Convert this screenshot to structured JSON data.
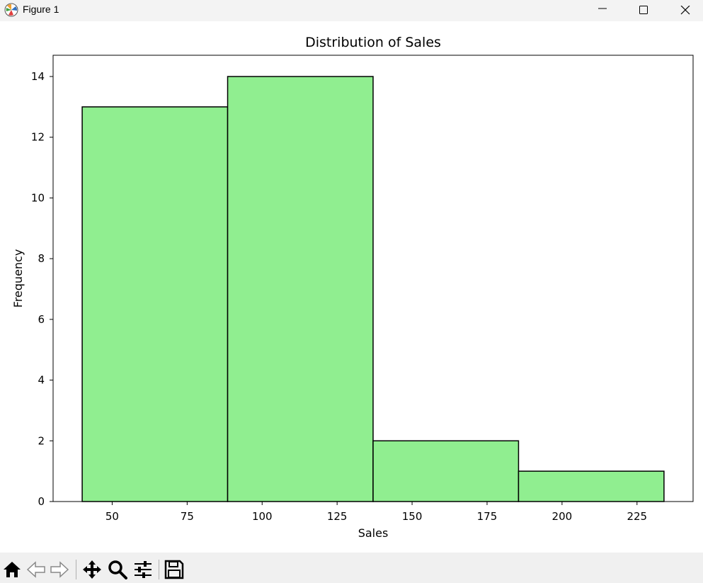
{
  "window": {
    "title": "Figure 1",
    "icon": "matplotlib-logo-icon",
    "controls": [
      "minimize-icon",
      "maximize-icon",
      "close-icon"
    ]
  },
  "toolbar": {
    "buttons": [
      "home-icon",
      "back-arrow-icon",
      "forward-arrow-icon",
      "pan-move-icon",
      "zoom-magnifier-icon",
      "configure-subplots-icon",
      "save-disk-icon"
    ]
  },
  "chart_data": {
    "type": "bar",
    "title": "Distribution of Sales",
    "xlabel": "Sales",
    "ylabel": "Frequency",
    "bins": [
      {
        "start": 40,
        "end": 88.5,
        "count": 13
      },
      {
        "start": 88.5,
        "end": 137,
        "count": 14
      },
      {
        "start": 137,
        "end": 185.5,
        "count": 2
      },
      {
        "start": 185.5,
        "end": 234,
        "count": 1
      }
    ],
    "xlim": [
      30.3,
      243.7
    ],
    "ylim": [
      0,
      14.7
    ],
    "xticks": [
      50,
      75,
      100,
      125,
      150,
      175,
      200,
      225
    ],
    "yticks": [
      0,
      2,
      4,
      6,
      8,
      10,
      12,
      14
    ],
    "bar_color": "#90ee90",
    "edge_color": "#000000",
    "grid": false
  }
}
